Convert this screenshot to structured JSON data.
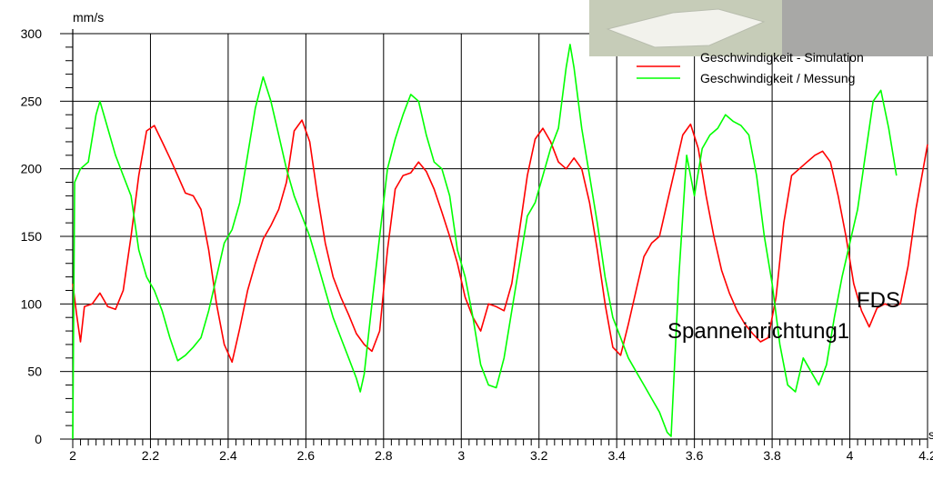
{
  "chart_data": {
    "type": "line",
    "ylabel": "mm/s",
    "xunit": "s",
    "xlim": [
      2,
      4.2
    ],
    "ylim": [
      0,
      300
    ],
    "x_ticks": [
      "2",
      "2.2",
      "2.4",
      "2.6",
      "2.8",
      "3",
      "3.2",
      "3.4",
      "3.6",
      "3.8",
      "4",
      "4.2"
    ],
    "y_ticks": [
      "0",
      "50",
      "100",
      "150",
      "200",
      "250",
      "300"
    ],
    "grid": true,
    "legend_position": "top-right",
    "annotations": [
      "FDS",
      "Spanneinrichtung1"
    ],
    "series": [
      {
        "name": "Geschwindigkeit - Simulation",
        "color": "#ff0000",
        "points": [
          [
            2.0,
            115
          ],
          [
            2.01,
            92
          ],
          [
            2.02,
            72
          ],
          [
            2.03,
            98
          ],
          [
            2.05,
            100
          ],
          [
            2.07,
            108
          ],
          [
            2.09,
            98
          ],
          [
            2.11,
            96
          ],
          [
            2.13,
            110
          ],
          [
            2.15,
            150
          ],
          [
            2.17,
            195
          ],
          [
            2.19,
            228
          ],
          [
            2.21,
            232
          ],
          [
            2.23,
            220
          ],
          [
            2.25,
            208
          ],
          [
            2.27,
            195
          ],
          [
            2.29,
            182
          ],
          [
            2.31,
            180
          ],
          [
            2.33,
            170
          ],
          [
            2.35,
            140
          ],
          [
            2.37,
            100
          ],
          [
            2.39,
            70
          ],
          [
            2.41,
            57
          ],
          [
            2.43,
            82
          ],
          [
            2.45,
            110
          ],
          [
            2.47,
            130
          ],
          [
            2.49,
            148
          ],
          [
            2.51,
            158
          ],
          [
            2.53,
            170
          ],
          [
            2.55,
            190
          ],
          [
            2.57,
            228
          ],
          [
            2.59,
            236
          ],
          [
            2.61,
            220
          ],
          [
            2.63,
            180
          ],
          [
            2.65,
            145
          ],
          [
            2.67,
            120
          ],
          [
            2.69,
            105
          ],
          [
            2.71,
            92
          ],
          [
            2.73,
            78
          ],
          [
            2.75,
            70
          ],
          [
            2.77,
            65
          ],
          [
            2.79,
            80
          ],
          [
            2.81,
            140
          ],
          [
            2.83,
            185
          ],
          [
            2.85,
            195
          ],
          [
            2.87,
            197
          ],
          [
            2.89,
            205
          ],
          [
            2.91,
            198
          ],
          [
            2.93,
            185
          ],
          [
            2.95,
            168
          ],
          [
            2.97,
            150
          ],
          [
            2.99,
            130
          ],
          [
            3.01,
            105
          ],
          [
            3.03,
            90
          ],
          [
            3.05,
            80
          ],
          [
            3.07,
            100
          ],
          [
            3.09,
            98
          ],
          [
            3.11,
            95
          ],
          [
            3.13,
            115
          ],
          [
            3.15,
            155
          ],
          [
            3.17,
            195
          ],
          [
            3.19,
            222
          ],
          [
            3.21,
            230
          ],
          [
            3.23,
            220
          ],
          [
            3.25,
            205
          ],
          [
            3.27,
            200
          ],
          [
            3.29,
            208
          ],
          [
            3.31,
            200
          ],
          [
            3.33,
            175
          ],
          [
            3.35,
            140
          ],
          [
            3.37,
            100
          ],
          [
            3.39,
            68
          ],
          [
            3.41,
            62
          ],
          [
            3.43,
            85
          ],
          [
            3.45,
            110
          ],
          [
            3.47,
            135
          ],
          [
            3.49,
            145
          ],
          [
            3.51,
            150
          ],
          [
            3.53,
            175
          ],
          [
            3.55,
            200
          ],
          [
            3.57,
            225
          ],
          [
            3.59,
            233
          ],
          [
            3.61,
            215
          ],
          [
            3.63,
            180
          ],
          [
            3.65,
            150
          ],
          [
            3.67,
            125
          ],
          [
            3.69,
            108
          ],
          [
            3.71,
            95
          ],
          [
            3.73,
            85
          ],
          [
            3.75,
            78
          ],
          [
            3.77,
            72
          ],
          [
            3.79,
            75
          ],
          [
            3.81,
            105
          ],
          [
            3.83,
            160
          ],
          [
            3.85,
            195
          ],
          [
            3.87,
            200
          ],
          [
            3.89,
            205
          ],
          [
            3.91,
            210
          ],
          [
            3.93,
            213
          ],
          [
            3.95,
            205
          ],
          [
            3.97,
            180
          ],
          [
            3.99,
            150
          ],
          [
            4.01,
            115
          ],
          [
            4.03,
            95
          ],
          [
            4.05,
            83
          ],
          [
            4.07,
            97
          ],
          [
            4.09,
            100
          ],
          [
            4.11,
            98
          ],
          [
            4.13,
            100
          ],
          [
            4.15,
            128
          ],
          [
            4.17,
            170
          ],
          [
            4.2,
            218
          ]
        ]
      },
      {
        "name": "Geschwindigkeit / Messung",
        "color": "#00ff00",
        "points": [
          [
            2.0,
            0
          ],
          [
            2.005,
            190
          ],
          [
            2.02,
            200
          ],
          [
            2.04,
            205
          ],
          [
            2.06,
            240
          ],
          [
            2.07,
            250
          ],
          [
            2.09,
            230
          ],
          [
            2.11,
            210
          ],
          [
            2.13,
            195
          ],
          [
            2.15,
            180
          ],
          [
            2.17,
            140
          ],
          [
            2.19,
            120
          ],
          [
            2.21,
            110
          ],
          [
            2.23,
            95
          ],
          [
            2.25,
            75
          ],
          [
            2.27,
            58
          ],
          [
            2.29,
            62
          ],
          [
            2.31,
            68
          ],
          [
            2.33,
            75
          ],
          [
            2.35,
            95
          ],
          [
            2.37,
            120
          ],
          [
            2.39,
            145
          ],
          [
            2.41,
            155
          ],
          [
            2.43,
            175
          ],
          [
            2.45,
            210
          ],
          [
            2.47,
            245
          ],
          [
            2.49,
            268
          ],
          [
            2.51,
            250
          ],
          [
            2.53,
            225
          ],
          [
            2.55,
            200
          ],
          [
            2.57,
            180
          ],
          [
            2.59,
            165
          ],
          [
            2.61,
            150
          ],
          [
            2.63,
            130
          ],
          [
            2.65,
            110
          ],
          [
            2.67,
            90
          ],
          [
            2.69,
            75
          ],
          [
            2.71,
            60
          ],
          [
            2.73,
            45
          ],
          [
            2.74,
            35
          ],
          [
            2.75,
            48
          ],
          [
            2.77,
            100
          ],
          [
            2.79,
            150
          ],
          [
            2.81,
            200
          ],
          [
            2.83,
            222
          ],
          [
            2.85,
            240
          ],
          [
            2.87,
            255
          ],
          [
            2.89,
            250
          ],
          [
            2.91,
            225
          ],
          [
            2.93,
            205
          ],
          [
            2.95,
            200
          ],
          [
            2.97,
            180
          ],
          [
            2.99,
            140
          ],
          [
            3.01,
            120
          ],
          [
            3.03,
            90
          ],
          [
            3.05,
            55
          ],
          [
            3.07,
            40
          ],
          [
            3.09,
            38
          ],
          [
            3.11,
            60
          ],
          [
            3.13,
            95
          ],
          [
            3.15,
            130
          ],
          [
            3.17,
            165
          ],
          [
            3.19,
            175
          ],
          [
            3.21,
            195
          ],
          [
            3.23,
            215
          ],
          [
            3.25,
            230
          ],
          [
            3.27,
            275
          ],
          [
            3.28,
            292
          ],
          [
            3.29,
            275
          ],
          [
            3.31,
            230
          ],
          [
            3.33,
            195
          ],
          [
            3.35,
            160
          ],
          [
            3.37,
            120
          ],
          [
            3.39,
            90
          ],
          [
            3.41,
            75
          ],
          [
            3.43,
            60
          ],
          [
            3.45,
            50
          ],
          [
            3.47,
            40
          ],
          [
            3.49,
            30
          ],
          [
            3.51,
            20
          ],
          [
            3.53,
            5
          ],
          [
            3.54,
            2
          ],
          [
            3.56,
            120
          ],
          [
            3.58,
            210
          ],
          [
            3.6,
            180
          ],
          [
            3.62,
            215
          ],
          [
            3.64,
            225
          ],
          [
            3.66,
            230
          ],
          [
            3.68,
            240
          ],
          [
            3.7,
            235
          ],
          [
            3.72,
            232
          ],
          [
            3.74,
            225
          ],
          [
            3.76,
            195
          ],
          [
            3.78,
            150
          ],
          [
            3.8,
            115
          ],
          [
            3.82,
            70
          ],
          [
            3.84,
            40
          ],
          [
            3.86,
            35
          ],
          [
            3.88,
            60
          ],
          [
            3.9,
            50
          ],
          [
            3.92,
            40
          ],
          [
            3.94,
            55
          ],
          [
            3.96,
            90
          ],
          [
            3.98,
            120
          ],
          [
            4.0,
            145
          ],
          [
            4.02,
            170
          ],
          [
            4.04,
            210
          ],
          [
            4.06,
            250
          ],
          [
            4.08,
            258
          ],
          [
            4.1,
            230
          ],
          [
            4.12,
            195
          ]
        ]
      }
    ]
  },
  "legend": {
    "items": [
      {
        "label": "Geschwindigkeit - Simulation",
        "color": "#ff0000"
      },
      {
        "label": "Geschwindigkeit / Messung",
        "color": "#00ff00"
      }
    ]
  },
  "overlay": {
    "fill_color": "#c6ccb8",
    "shape_color": "#f2f2ec"
  }
}
